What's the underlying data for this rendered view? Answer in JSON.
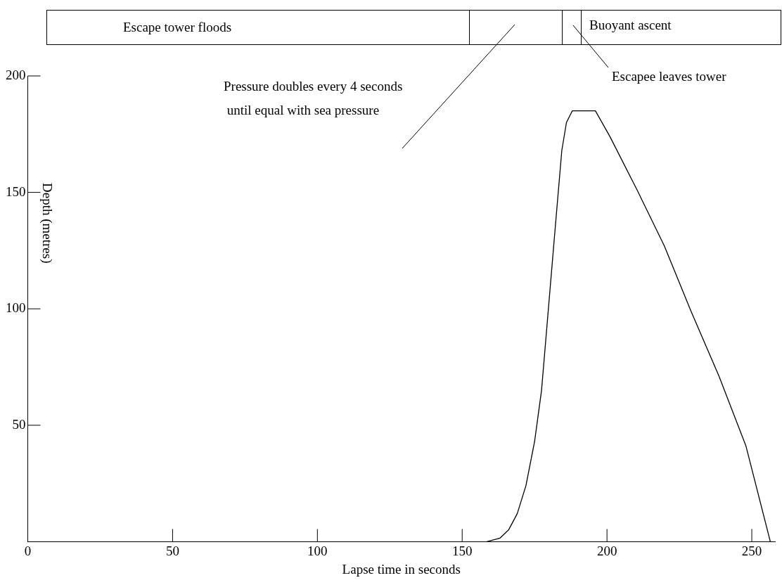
{
  "chart_data": {
    "type": "line",
    "xlabel": "Lapse time in seconds",
    "ylabel": "Depth (metres)",
    "annotations": [
      "Escape tower floods",
      "Pressure doubles every 4 seconds\n until equal with sea pressure",
      "Buoyant ascent",
      "Escapee leaves tower"
    ],
    "x": [
      158.5,
      163,
      166,
      169,
      172,
      175,
      177.4,
      179.7,
      182,
      184.4,
      186,
      188,
      196,
      201,
      210.4,
      219.8,
      229,
      238.7,
      248,
      256.4
    ],
    "series": [
      {
        "color": "#000000",
        "values": [
          0,
          1.5,
          5,
          12,
          24,
          43,
          65,
          99,
          133,
          168,
          180,
          185,
          185,
          174,
          151,
          127,
          99,
          71,
          41,
          0
        ]
      }
    ],
    "xlim": [
      0,
      258
    ],
    "xticks": [
      0,
      50,
      100,
      150,
      200,
      250
    ],
    "ylim": [
      0,
      200
    ],
    "yticks": [
      50,
      100,
      150,
      200
    ],
    "grid": false,
    "legend": false,
    "marker": "none",
    "line_style": "solid"
  }
}
